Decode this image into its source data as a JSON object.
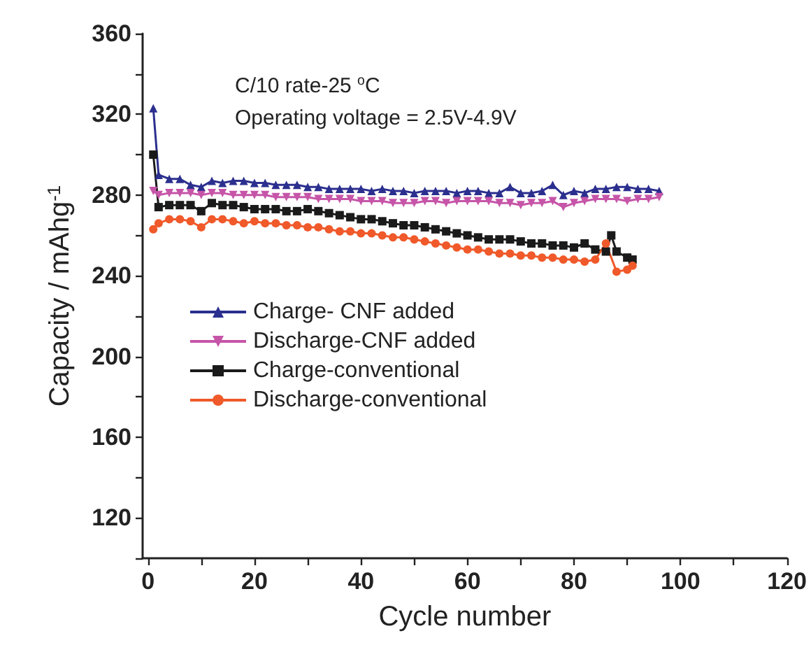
{
  "chart_data": {
    "type": "line",
    "xlabel": "Cycle number",
    "ylabel": "Capacity / mAhg$^{-1}$",
    "annotations": [
      "C/10 rate-25 $^{o}$C",
      "Operating voltage = 2.5V-4.9V"
    ],
    "xlim": [
      -1,
      120
    ],
    "xticks": [
      0,
      {
        "value": 10,
        "label": null
      },
      20,
      {
        "value": 30,
        "label": null
      },
      40,
      {
        "value": 50,
        "label": null
      },
      60,
      {
        "value": 70,
        "label": null
      },
      80,
      {
        "value": 90,
        "label": null
      },
      100,
      {
        "value": 110,
        "label": null
      },
      120
    ],
    "ylim": [
      100,
      360
    ],
    "yticks": [
      {
        "value": 100,
        "label": null
      },
      120,
      {
        "value": 140,
        "label": null
      },
      160,
      {
        "value": 180,
        "label": null
      },
      200,
      {
        "value": 220,
        "label": null
      },
      240,
      {
        "value": 260,
        "label": null
      },
      280,
      {
        "value": 300,
        "label": null
      },
      320,
      {
        "value": 340,
        "label": null
      },
      360
    ],
    "grid": false,
    "legend": "left",
    "line_style": "solid",
    "series": [
      {
        "name": "Charge- CNF added",
        "color": "#2b2f8e",
        "marker": "triangle",
        "x": [
          1,
          2,
          4,
          6,
          8,
          10,
          12,
          14,
          16,
          18,
          20,
          22,
          24,
          26,
          28,
          30,
          32,
          34,
          36,
          38,
          40,
          42,
          44,
          46,
          48,
          50,
          52,
          54,
          56,
          58,
          60,
          62,
          64,
          66,
          68,
          70,
          72,
          74,
          76,
          78,
          80,
          82,
          84,
          86,
          88,
          90,
          92,
          94,
          96
        ],
        "values": [
          323,
          290,
          288,
          288,
          285,
          284,
          287,
          286,
          287,
          287,
          286,
          286,
          285,
          285,
          285,
          284,
          284,
          283,
          283,
          283,
          283,
          282,
          283,
          282,
          282,
          281,
          282,
          282,
          282,
          281,
          282,
          282,
          281,
          281,
          284,
          281,
          281,
          282,
          285,
          280,
          282,
          281,
          283,
          283,
          284,
          284,
          283,
          283,
          282
        ]
      },
      {
        "name": "Discharge-CNF added",
        "color": "#c655a8",
        "marker": "triangle-down",
        "x": [
          1,
          2,
          4,
          6,
          8,
          10,
          12,
          14,
          16,
          18,
          20,
          22,
          24,
          26,
          28,
          30,
          32,
          34,
          36,
          38,
          40,
          42,
          44,
          46,
          48,
          50,
          52,
          54,
          56,
          58,
          60,
          62,
          64,
          66,
          68,
          70,
          72,
          74,
          76,
          78,
          80,
          82,
          84,
          86,
          88,
          90,
          92,
          94,
          96
        ],
        "values": [
          282,
          280,
          281,
          281,
          281,
          280,
          281,
          281,
          280,
          280,
          280,
          280,
          279,
          279,
          279,
          279,
          278,
          278,
          278,
          278,
          277,
          277,
          277,
          276,
          276,
          276,
          277,
          277,
          276,
          277,
          277,
          277,
          277,
          276,
          276,
          275,
          276,
          276,
          277,
          274,
          276,
          277,
          278,
          278,
          278,
          277,
          278,
          278,
          279
        ]
      },
      {
        "name": "Charge-conventional",
        "color": "#1a1a1a",
        "marker": "square",
        "x": [
          1,
          2,
          4,
          6,
          8,
          10,
          12,
          14,
          16,
          18,
          20,
          22,
          24,
          26,
          28,
          30,
          32,
          34,
          36,
          38,
          40,
          42,
          44,
          46,
          48,
          50,
          52,
          54,
          56,
          58,
          60,
          62,
          64,
          66,
          68,
          70,
          72,
          74,
          76,
          78,
          80,
          82,
          84,
          86,
          87,
          88,
          90,
          91
        ],
        "values": [
          300,
          274,
          275,
          275,
          275,
          272,
          276,
          275,
          275,
          274,
          273,
          273,
          273,
          272,
          272,
          273,
          272,
          271,
          270,
          269,
          268,
          268,
          267,
          266,
          265,
          265,
          264,
          263,
          262,
          261,
          260,
          259,
          258,
          258,
          258,
          257,
          256,
          256,
          255,
          255,
          254,
          256,
          253,
          252,
          260,
          252,
          249,
          248
        ]
      },
      {
        "name": "Discharge-conventional",
        "color": "#f0592a",
        "marker": "circle",
        "x": [
          1,
          2,
          4,
          6,
          8,
          10,
          12,
          14,
          16,
          18,
          20,
          22,
          24,
          26,
          28,
          30,
          32,
          34,
          36,
          38,
          40,
          42,
          44,
          46,
          48,
          50,
          52,
          54,
          56,
          58,
          60,
          62,
          64,
          66,
          68,
          70,
          72,
          74,
          76,
          78,
          80,
          82,
          84,
          86,
          88,
          90,
          91
        ],
        "values": [
          263,
          266,
          268,
          268,
          267,
          264,
          268,
          268,
          267,
          266,
          267,
          266,
          266,
          265,
          265,
          264,
          264,
          263,
          262,
          262,
          261,
          261,
          260,
          259,
          259,
          258,
          257,
          256,
          255,
          254,
          253,
          253,
          252,
          251,
          251,
          250,
          250,
          249,
          249,
          248,
          248,
          247,
          248,
          256,
          242,
          243,
          245
        ]
      }
    ]
  }
}
